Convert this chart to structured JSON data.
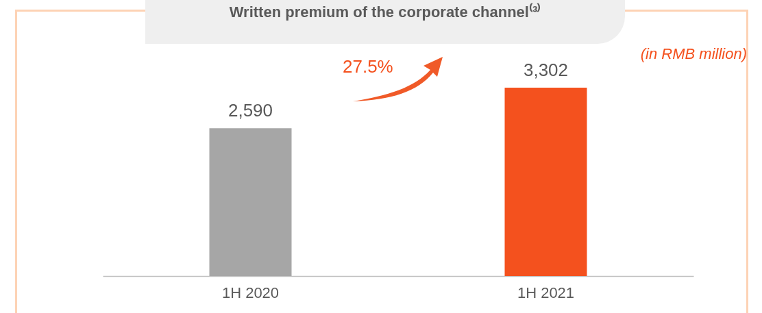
{
  "chart_data": {
    "type": "bar",
    "title": "Written premium of the corporate channel⁽³⁾",
    "categories": [
      "1H 2020",
      "1H 2021"
    ],
    "values": [
      2590,
      3302
    ],
    "colors": [
      "#a6a6a6",
      "#f4511e"
    ],
    "value_labels": [
      "2,590",
      "3,302"
    ],
    "annotations": [
      "27.5%",
      "(in RMB million)"
    ]
  }
}
